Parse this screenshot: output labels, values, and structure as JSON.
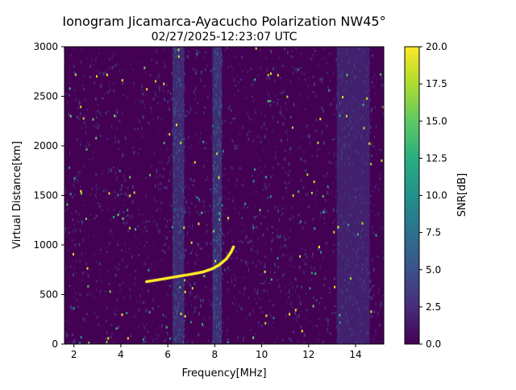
{
  "chart_data": {
    "type": "heatmap",
    "title": "Ionogram Jicamarca-Ayacucho Polarization NW45°",
    "subtitle": "02/27/2025-12:23:07 UTC",
    "xlabel": "Frequency[MHz]",
    "ylabel": "Virtual Distance[km]",
    "xlim": [
      1.6,
      15.2
    ],
    "ylim": [
      0,
      3000
    ],
    "xticks": [
      2,
      4,
      6,
      8,
      10,
      12,
      14
    ],
    "yticks": [
      0,
      500,
      1000,
      1500,
      2000,
      2500,
      3000
    ],
    "xtick_labels": [
      "2",
      "4",
      "6",
      "8",
      "10",
      "12",
      "14"
    ],
    "ytick_labels": [
      "0",
      "500",
      "1000",
      "1500",
      "2000",
      "2500",
      "3000"
    ],
    "colorbar": {
      "label": "SNR[dB]",
      "range": [
        0,
        20
      ],
      "ticks": [
        0,
        2.5,
        5,
        7.5,
        10,
        12.5,
        15,
        17.5,
        20
      ],
      "tick_labels": [
        "0.0",
        "2.5",
        "5.0",
        "7.5",
        "10.0",
        "12.5",
        "15.0",
        "17.5",
        "20.0"
      ],
      "colormap": "viridis"
    },
    "interference_bands": [
      {
        "freq": [
          6.2,
          6.7
        ],
        "snr": 4.5
      },
      {
        "freq": [
          7.9,
          8.3
        ],
        "snr": 5.0
      },
      {
        "freq": [
          13.2,
          14.6
        ],
        "snr": 3.5
      }
    ],
    "trace": {
      "snr": 20,
      "points": [
        [
          5.1,
          630
        ],
        [
          5.5,
          645
        ],
        [
          6.0,
          665
        ],
        [
          6.5,
          685
        ],
        [
          7.0,
          705
        ],
        [
          7.5,
          728
        ],
        [
          7.9,
          760
        ],
        [
          8.2,
          800
        ],
        [
          8.5,
          860
        ],
        [
          8.7,
          930
        ],
        [
          8.8,
          980
        ]
      ]
    }
  }
}
